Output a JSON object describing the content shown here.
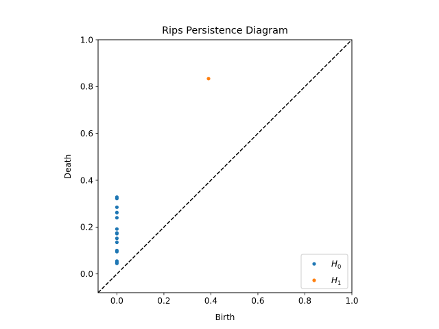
{
  "chart_data": {
    "type": "scatter",
    "title": "Rips Persistence Diagram",
    "xlabel": "Birth",
    "ylabel": "Death",
    "xlim": [
      -0.08,
      1.0
    ],
    "ylim": [
      -0.08,
      1.0
    ],
    "x_ticks": [
      0.0,
      0.2,
      0.4,
      0.6,
      0.8,
      1.0
    ],
    "y_ticks": [
      0.0,
      0.2,
      0.4,
      0.6,
      0.8,
      1.0
    ],
    "x_tick_labels": [
      "0.0",
      "0.2",
      "0.4",
      "0.6",
      "0.8",
      "1.0"
    ],
    "y_tick_labels": [
      "0.0",
      "0.2",
      "0.4",
      "0.6",
      "0.8",
      "1.0"
    ],
    "grid": false,
    "legend_position": "bottom-right",
    "diagonal": {
      "style": "dashed",
      "color": "#000000"
    },
    "series": [
      {
        "name": "H0",
        "legend_main": "H",
        "legend_sub": "0",
        "color": "#1f77b4",
        "points": [
          [
            0.0,
            0.045
          ],
          [
            0.0,
            0.05
          ],
          [
            0.0,
            0.055
          ],
          [
            0.0,
            0.095
          ],
          [
            0.0,
            0.1
          ],
          [
            0.0,
            0.135
          ],
          [
            0.0,
            0.152
          ],
          [
            0.0,
            0.172
          ],
          [
            0.0,
            0.175
          ],
          [
            0.0,
            0.192
          ],
          [
            0.0,
            0.24
          ],
          [
            0.0,
            0.262
          ],
          [
            0.0,
            0.285
          ],
          [
            0.0,
            0.322
          ],
          [
            0.0,
            0.328
          ]
        ]
      },
      {
        "name": "H1",
        "legend_main": "H",
        "legend_sub": "1",
        "color": "#ff7f0e",
        "points": [
          [
            0.39,
            0.834
          ]
        ]
      }
    ]
  }
}
